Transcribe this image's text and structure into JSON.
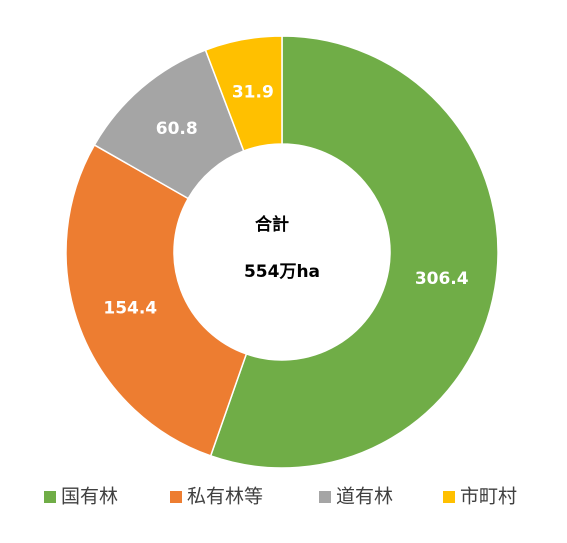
{
  "chart_data": {
    "type": "donut",
    "categories": [
      "国有林",
      "私有林等",
      "道有林",
      "市町村"
    ],
    "values": [
      306.4,
      154.4,
      60.8,
      31.9
    ],
    "colors": [
      "#70ad47",
      "#ed7d31",
      "#a5a5a5",
      "#ffc000"
    ],
    "annotations": [
      "合計",
      "554万ha"
    ],
    "legend": "bottom"
  }
}
